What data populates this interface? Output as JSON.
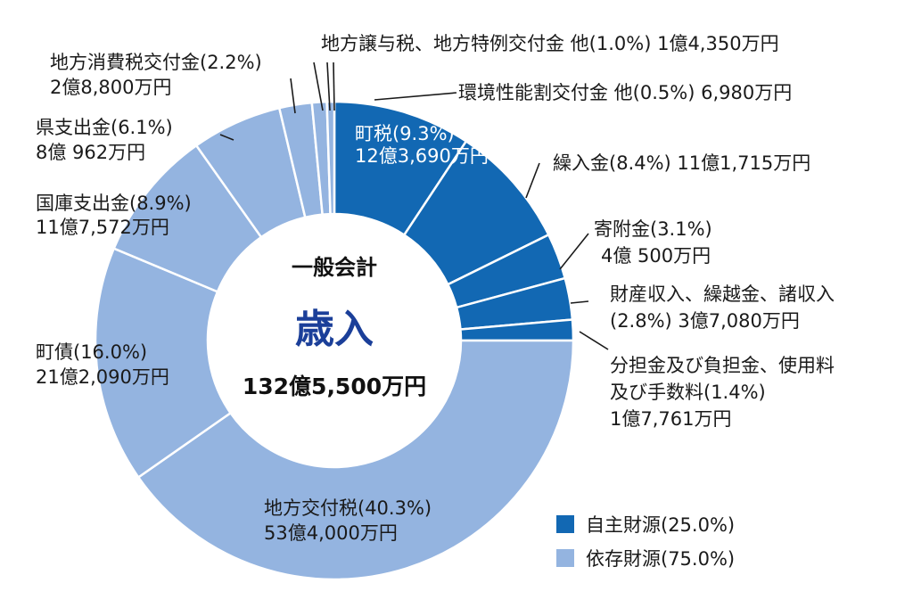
{
  "chart_data": {
    "type": "pie",
    "center": {
      "title": "一般会計",
      "main": "歳入",
      "total": "132億5,500万円"
    },
    "slices": [
      {
        "name": "町税",
        "percent": 9.3,
        "amount": "12億3,690万円",
        "group": "own",
        "label": "町税(9.3%)"
      },
      {
        "name": "繰入金",
        "percent": 8.4,
        "amount": "11億1,715万円",
        "group": "own",
        "label": "繰入金(8.4%) 11億1,715万円"
      },
      {
        "name": "寄附金",
        "percent": 3.1,
        "amount": "4億 500万円",
        "group": "own",
        "label": "寄附金(3.1%)"
      },
      {
        "name": "財産収入、繰越金、諸収入",
        "percent": 2.8,
        "amount": "3億7,080万円",
        "group": "own",
        "label": "財産収入、繰越金、諸収入",
        "label2": "(2.8%) 3億7,080万円"
      },
      {
        "name": "分担金及び負担金、使用料及び手数料",
        "percent": 1.4,
        "amount": "1億7,761万円",
        "group": "own",
        "label": "分担金及び負担金、使用料",
        "label2": "及び手数料(1.4%)"
      },
      {
        "name": "地方交付税",
        "percent": 40.3,
        "amount": "53億4,000万円",
        "group": "dep",
        "label": "地方交付税(40.3%)"
      },
      {
        "name": "町債",
        "percent": 16.0,
        "amount": "21億2,090万円",
        "group": "dep",
        "label": "町債(16.0%)"
      },
      {
        "name": "国庫支出金",
        "percent": 8.9,
        "amount": "11億7,572万円",
        "group": "dep",
        "label": "国庫支出金(8.9%)"
      },
      {
        "name": "県支出金",
        "percent": 6.1,
        "amount": "8億 962万円",
        "group": "dep",
        "label": "県支出金(6.1%)"
      },
      {
        "name": "地方消費税交付金",
        "percent": 2.2,
        "amount": "2億8,800万円",
        "group": "dep",
        "label": "地方消費税交付金(2.2%)"
      },
      {
        "name": "地方譲与税、地方特例交付金 他",
        "percent": 1.0,
        "amount": "1億4,350万円",
        "group": "dep",
        "label": "地方譲与税、地方特例交付金 他(1.0%) 1億4,350万円"
      },
      {
        "name": "環境性能割交付金 他",
        "percent": 0.5,
        "amount": "6,980万円",
        "group": "dep",
        "label": "環境性能割交付金 他(0.5%) 6,980万円"
      }
    ],
    "legend": [
      {
        "label": "自主財源(25.0%)",
        "group": "own"
      },
      {
        "label": "依存財源(75.0%)",
        "group": "dep"
      }
    ],
    "colors": {
      "own": "#1268b3",
      "dep": "#94b4e0"
    }
  }
}
